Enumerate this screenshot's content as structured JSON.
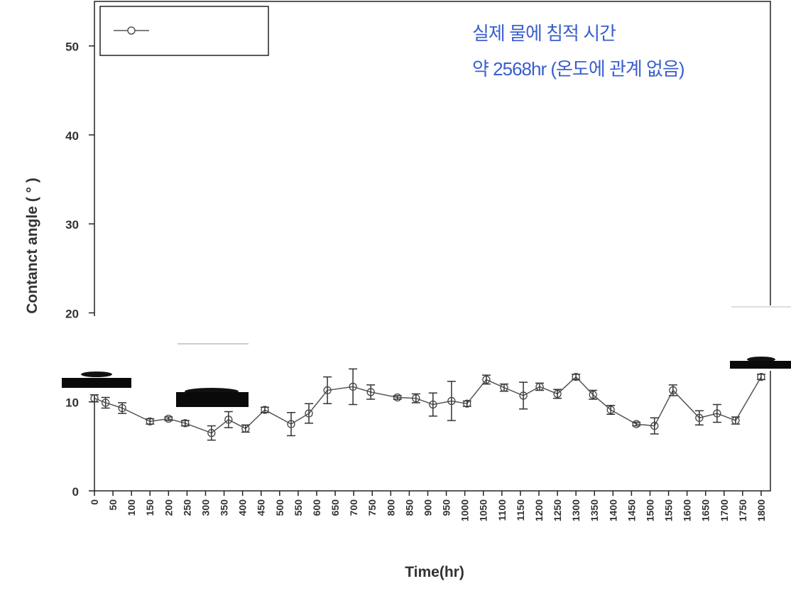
{
  "chart_data": {
    "type": "line",
    "xlabel": "Time(hr)",
    "ylabel": "Contanct angle ( ° )",
    "annotations": [
      "실제 물에 침적 시간",
      "약 2568hr (온도에 관계 없음)"
    ],
    "x": [
      0,
      30,
      75,
      150,
      200,
      245,
      316,
      362,
      408,
      460,
      531,
      579,
      629,
      698,
      746,
      818,
      868,
      914,
      964,
      1006,
      1058,
      1106,
      1158,
      1202,
      1250,
      1300,
      1346,
      1394,
      1463,
      1512,
      1562,
      1633,
      1681,
      1731,
      1800
    ],
    "series": [
      {
        "color": "#555555",
        "values": [
          10.4,
          9.9,
          9.3,
          7.8,
          8.1,
          7.6,
          6.5,
          8.0,
          7.0,
          9.1,
          7.5,
          8.7,
          11.3,
          11.7,
          11.1,
          10.5,
          10.4,
          9.7,
          10.1,
          9.8,
          12.5,
          11.6,
          10.7,
          11.7,
          10.9,
          12.8,
          10.8,
          9.1,
          7.5,
          7.3,
          11.3,
          8.2,
          8.7,
          7.9,
          12.8
        ],
        "errors": [
          0.4,
          0.6,
          0.6,
          0.3,
          0.2,
          0.3,
          0.8,
          0.9,
          0.4,
          0.3,
          1.3,
          1.1,
          1.5,
          2.0,
          0.8,
          0.2,
          0.5,
          1.3,
          2.2,
          0.3,
          0.5,
          0.4,
          1.5,
          0.4,
          0.5,
          0.3,
          0.5,
          0.5,
          0.2,
          0.9,
          0.6,
          0.8,
          1.0,
          0.4,
          0.3
        ]
      }
    ],
    "xlim": [
      0,
      1825
    ],
    "ylim": [
      0,
      55
    ],
    "xticks": [
      0,
      50,
      100,
      150,
      200,
      250,
      300,
      350,
      400,
      450,
      500,
      550,
      600,
      650,
      700,
      750,
      800,
      850,
      900,
      950,
      1000,
      1050,
      1100,
      1150,
      1200,
      1250,
      1300,
      1350,
      1400,
      1450,
      1500,
      1550,
      1600,
      1650,
      1700,
      1750,
      1800
    ],
    "yticks": [
      0,
      10,
      20,
      30,
      40,
      50
    ]
  }
}
